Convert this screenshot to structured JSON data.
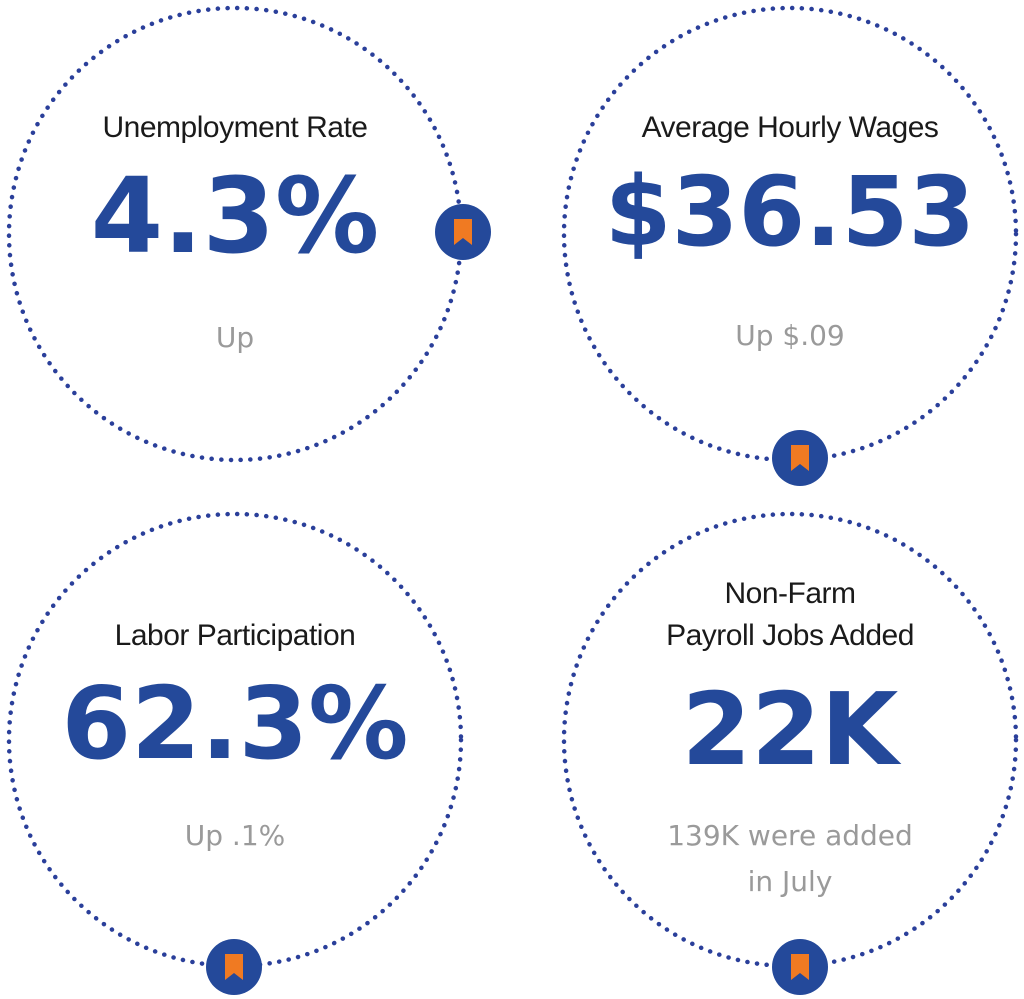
{
  "colors": {
    "ring": "#2a3f9a",
    "value": "#24499a",
    "badge_circle": "#24499a",
    "badge_ribbon": "#f07a22",
    "sub_text": "#9a9a9a",
    "label_text": "#1a1a1a"
  },
  "stats": {
    "unemployment": {
      "label": "Unemployment Rate",
      "value": "4.3%",
      "change": "Up",
      "icon": "ribbon-badge-icon"
    },
    "wages": {
      "label": "Average Hourly Wages",
      "value": "$36.53",
      "change": "Up $.09",
      "icon": "ribbon-badge-icon"
    },
    "participation": {
      "label": "Labor Participation",
      "value": "62.3%",
      "change": "Up .1%",
      "icon": "ribbon-badge-icon"
    },
    "payroll": {
      "label_line1": "Non-Farm",
      "label_line2": "Payroll Jobs Added",
      "value": "22K",
      "change_line1": "139K were added",
      "change_line2": "in July",
      "icon": "ribbon-badge-icon"
    }
  }
}
